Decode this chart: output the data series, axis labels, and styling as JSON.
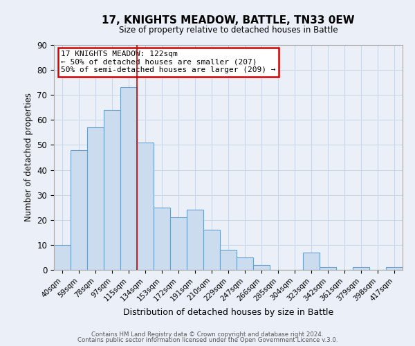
{
  "title": "17, KNIGHTS MEADOW, BATTLE, TN33 0EW",
  "subtitle": "Size of property relative to detached houses in Battle",
  "xlabel": "Distribution of detached houses by size in Battle",
  "ylabel": "Number of detached properties",
  "footer_line1": "Contains HM Land Registry data © Crown copyright and database right 2024.",
  "footer_line2": "Contains public sector information licensed under the Open Government Licence v.3.0.",
  "bin_labels": [
    "40sqm",
    "59sqm",
    "78sqm",
    "97sqm",
    "115sqm",
    "134sqm",
    "153sqm",
    "172sqm",
    "191sqm",
    "210sqm",
    "229sqm",
    "247sqm",
    "266sqm",
    "285sqm",
    "304sqm",
    "323sqm",
    "342sqm",
    "361sqm",
    "379sqm",
    "398sqm",
    "417sqm"
  ],
  "bar_values": [
    10,
    48,
    57,
    64,
    73,
    51,
    25,
    21,
    24,
    16,
    8,
    5,
    2,
    0,
    0,
    7,
    1,
    0,
    1,
    0,
    1
  ],
  "bar_color": "#ccdcef",
  "bar_edge_color": "#6aa0cc",
  "grid_color": "#c8d4e4",
  "background_color": "#eaeff8",
  "vline_x_index": 4.5,
  "vline_color": "#cc0000",
  "annotation_title": "17 KNIGHTS MEADOW: 122sqm",
  "annotation_line1": "← 50% of detached houses are smaller (207)",
  "annotation_line2": "50% of semi-detached houses are larger (209) →",
  "annotation_box_color": "#ffffff",
  "annotation_border_color": "#cc0000",
  "ylim": [
    0,
    90
  ],
  "yticks": [
    0,
    10,
    20,
    30,
    40,
    50,
    60,
    70,
    80,
    90
  ],
  "num_bins": 21
}
